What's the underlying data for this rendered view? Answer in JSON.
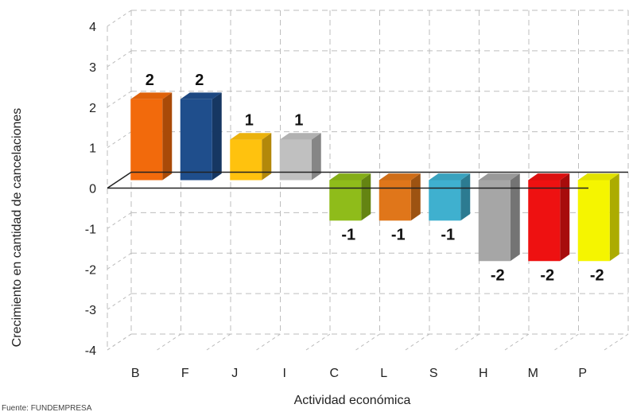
{
  "chart_data": {
    "type": "bar",
    "title": "",
    "xlabel": "Actividad económica",
    "ylabel": "Crecimiento en cantidad de cancelaciones",
    "categories": [
      "B",
      "F",
      "J",
      "I",
      "C",
      "L",
      "S",
      "H",
      "M",
      "P"
    ],
    "values": [
      2,
      2,
      1,
      1,
      -1,
      -1,
      -1,
      -2,
      -2,
      -2
    ],
    "data_labels": [
      "2",
      "2",
      "1",
      "1",
      "-1",
      "-1",
      "-1",
      "-2",
      "-2",
      "-2"
    ],
    "bar_colors": [
      "#f26a0c",
      "#1f4e8c",
      "#ffc20e",
      "#c0c0c0",
      "#8fbc1a",
      "#e0761a",
      "#3fb0cf",
      "#a6a6a6",
      "#ee1111",
      "#f5f500"
    ],
    "ylim": [
      -4,
      4
    ],
    "yticks": [
      4,
      3,
      2,
      1,
      0,
      -1,
      -2,
      -3,
      -4
    ],
    "grid": true,
    "style": "3d-bar",
    "legend": "none"
  },
  "source": {
    "text": "Fuente: FUNDEMPRESA"
  }
}
